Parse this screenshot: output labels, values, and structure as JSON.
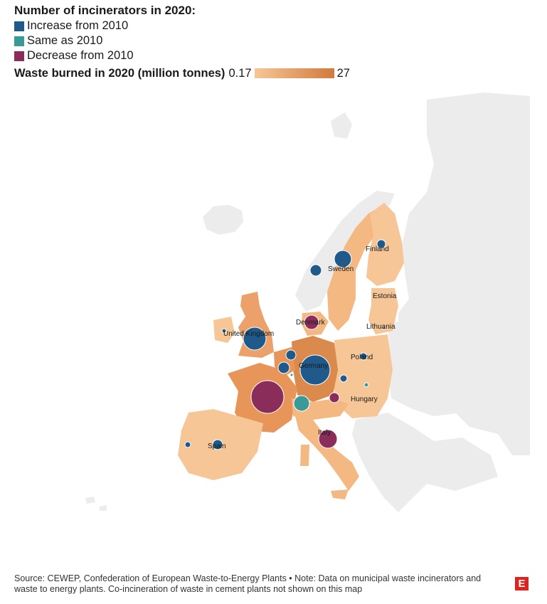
{
  "legend": {
    "title": "Number of incinerators in 2020:",
    "categories": [
      {
        "label": "Increase from 2010",
        "color": "#1f5a8a"
      },
      {
        "label": "Same as 2010",
        "color": "#3a9a98"
      },
      {
        "label": "Decrease from 2010",
        "color": "#8b2d5a"
      }
    ],
    "scale_title": "Waste burned in 2020 (million tonnes)",
    "scale_min": "0.17",
    "scale_max": "27",
    "scale_color_low": "#f7c697",
    "scale_color_high": "#d17a3c"
  },
  "map": {
    "base_color": "#ececec",
    "country_labels": {
      "finland": "Finland",
      "sweden": "Sweden",
      "estonia": "Estonia",
      "denmark": "Denmark",
      "lithuania": "Lithuania",
      "uk": "United Kingdom",
      "poland": "Poland",
      "germany": "Germany",
      "hungary": "Hungary",
      "italy": "Italy",
      "spain": "Spain"
    }
  },
  "footer": {
    "source": "Source: CEWEP, Confederation of European Waste-to-Energy Plants • Note: Data on municipal waste incinerators and waste to energy plants. Co-incineration of waste in cement plants not shown on this map"
  },
  "logo": {
    "letter": "E",
    "color": "#e0221f"
  }
}
